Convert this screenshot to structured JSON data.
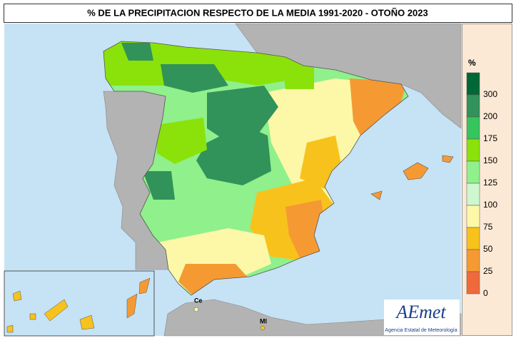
{
  "title": "% DE LA PRECIPITACION RESPECTO DE LA MEDIA 1991-2020 - OTOÑO 2023",
  "legend": {
    "unit": "%",
    "items": [
      {
        "value": 300,
        "color": "#006837"
      },
      {
        "value": 200,
        "color": "#31925a"
      },
      {
        "value": 175,
        "color": "#36c45c"
      },
      {
        "value": 150,
        "color": "#8ae20a"
      },
      {
        "value": 125,
        "color": "#8ff08c"
      },
      {
        "value": 100,
        "color": "#cff7cf"
      },
      {
        "value": 75,
        "color": "#fcf8a8"
      },
      {
        "value": 50,
        "color": "#f8c21c"
      },
      {
        "value": 25,
        "color": "#f59a33"
      },
      {
        "value": 0,
        "color": "#f0693a"
      }
    ]
  },
  "places": [
    "Ce",
    "Ml"
  ],
  "logo": {
    "name": "AEmet",
    "subtitle": "Agencia Estatal de Meteorología"
  }
}
